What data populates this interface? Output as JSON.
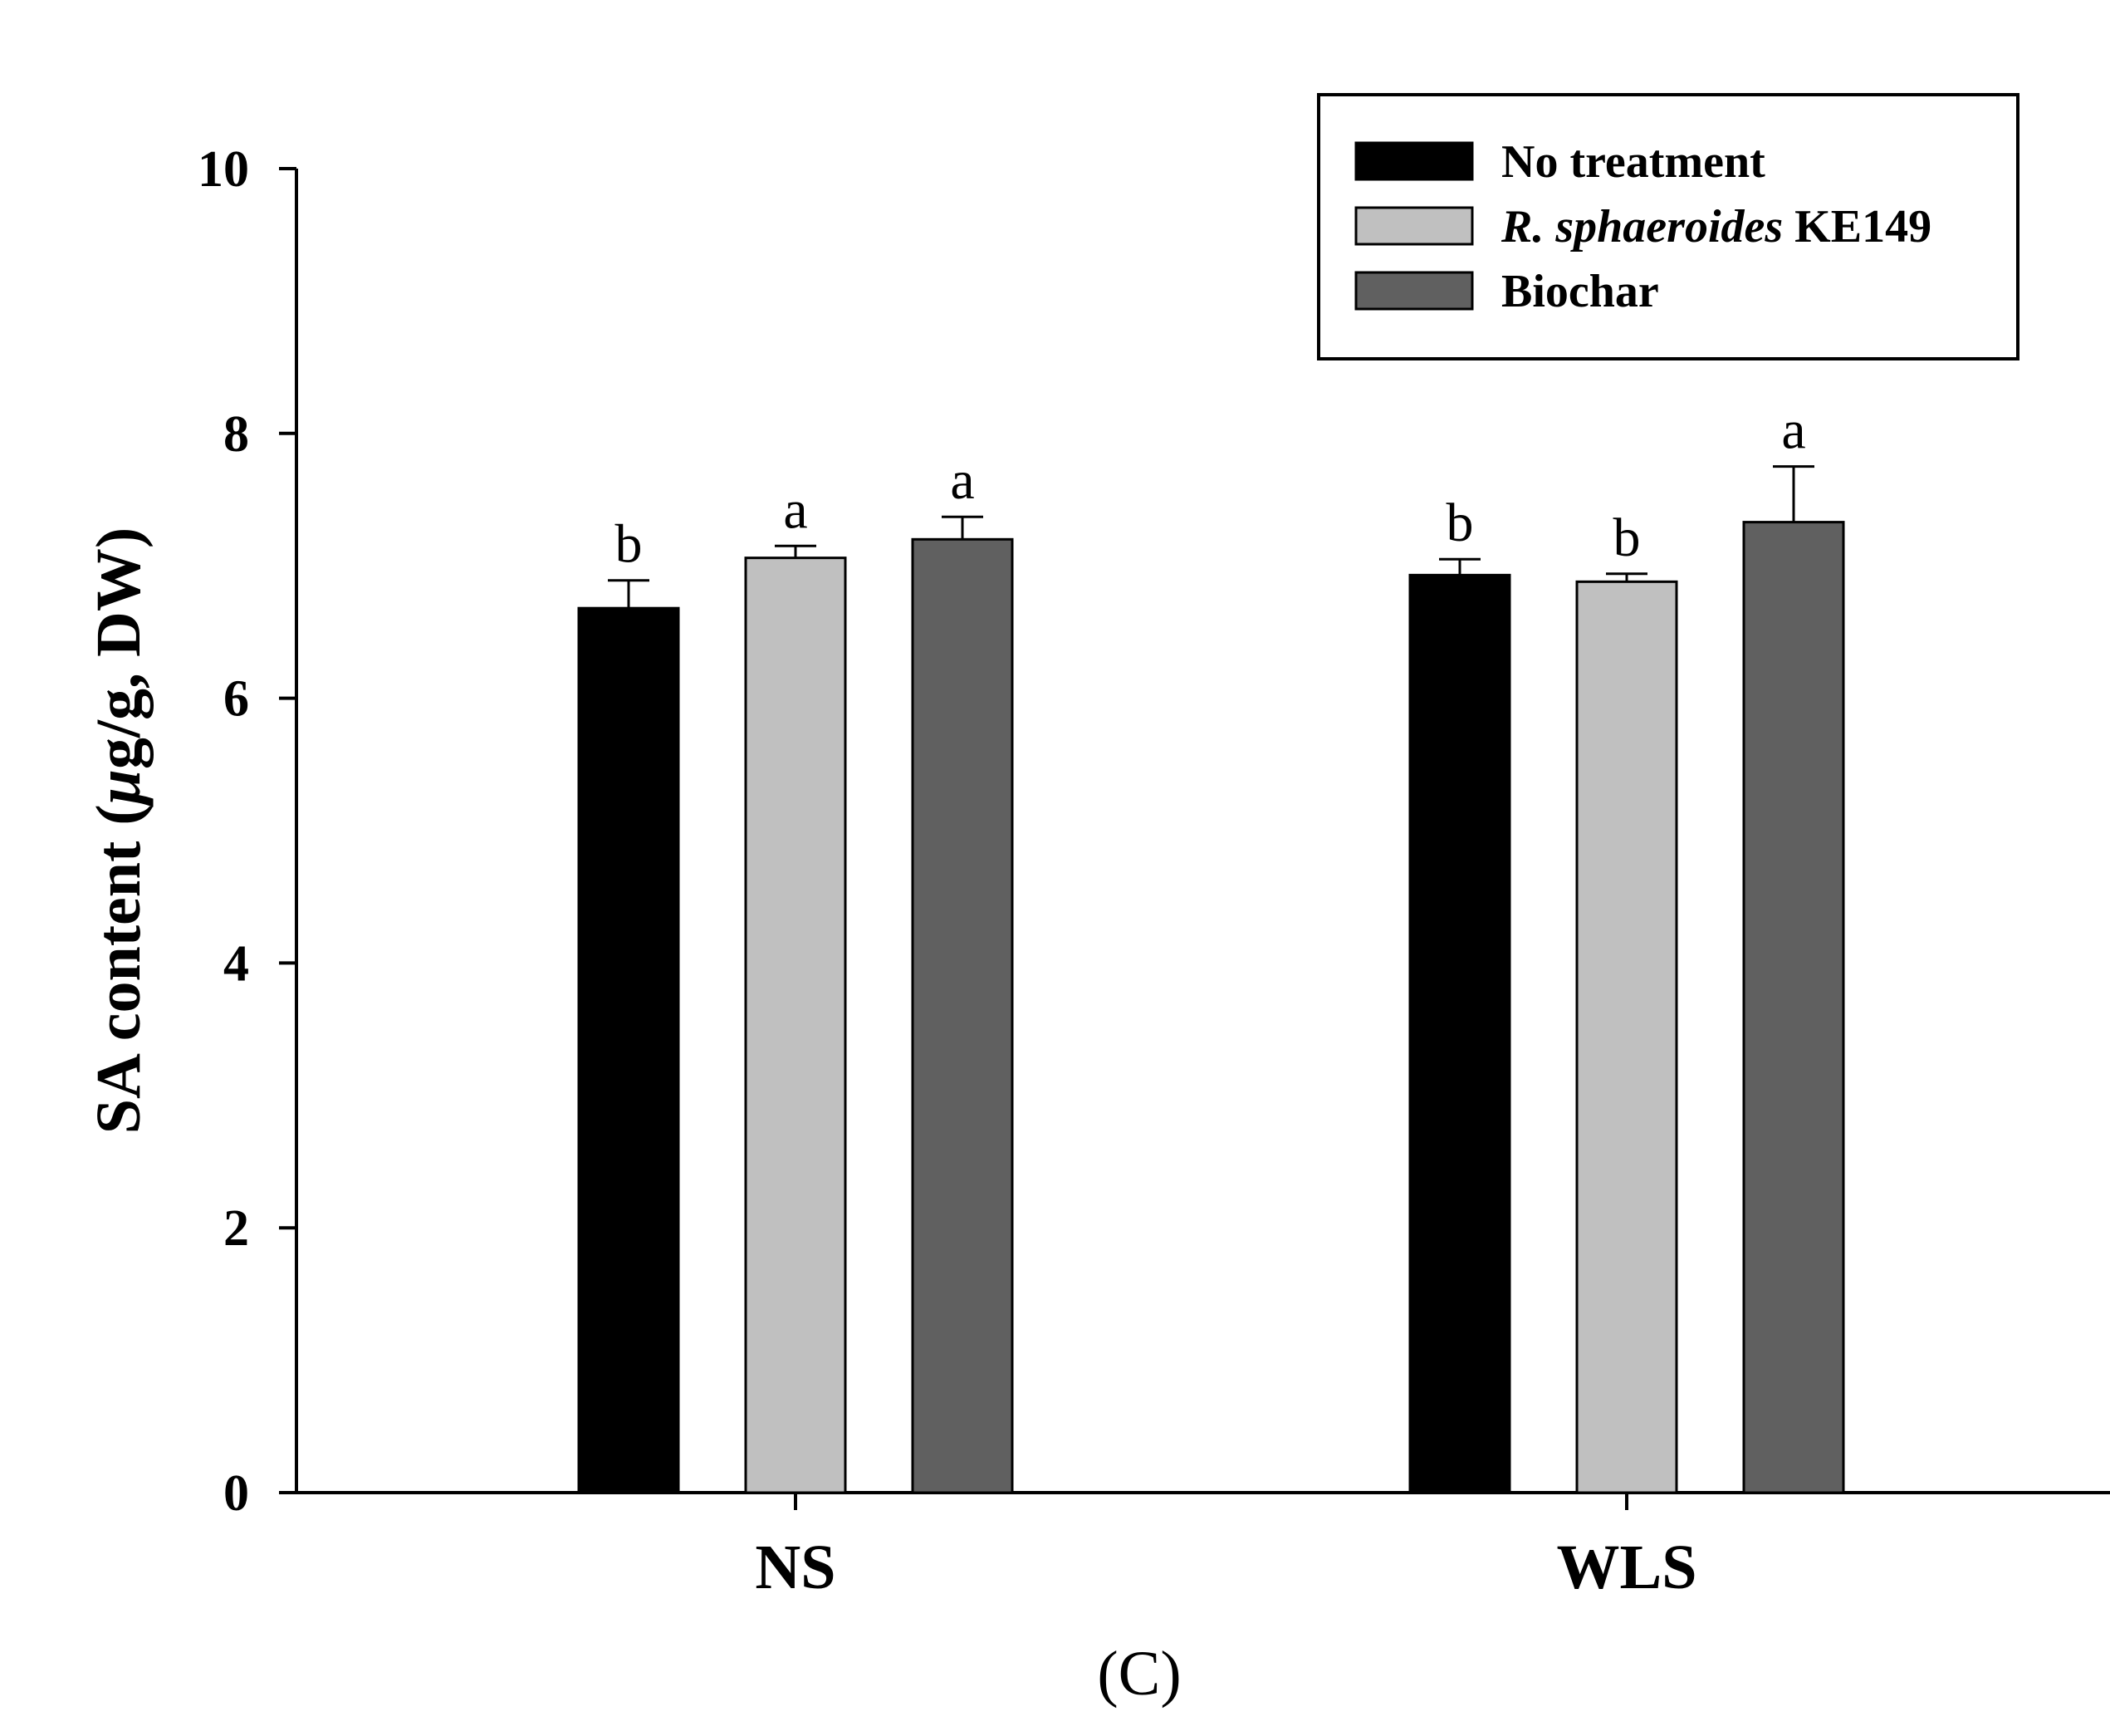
{
  "chart_data": {
    "type": "bar",
    "title": "",
    "xlabel": "",
    "ylabel_parts": [
      "SA content (",
      "μ",
      "g/g, DW)"
    ],
    "ylim": [
      0,
      10
    ],
    "yticks": [
      "0",
      "2",
      "4",
      "6",
      "8",
      "10"
    ],
    "categories": [
      "NS",
      "WLS"
    ],
    "series": [
      {
        "name": "No treatment",
        "name_parts": [
          {
            "text": "No treatment",
            "italic": false
          }
        ],
        "color": "#000000",
        "values": [
          6.68,
          6.93
        ],
        "errors": [
          0.21,
          0.12
        ],
        "labels": [
          "b",
          "b"
        ]
      },
      {
        "name": "R. sphaeroides KE149",
        "name_parts": [
          {
            "text": "R. sphaeroides",
            "italic": true
          },
          {
            "text": " KE149",
            "italic": false
          }
        ],
        "color": "#c0c0c0",
        "values": [
          7.06,
          6.88
        ],
        "errors": [
          0.09,
          0.06
        ],
        "labels": [
          "a",
          "b"
        ]
      },
      {
        "name": "Biochar",
        "name_parts": [
          {
            "text": "Biochar",
            "italic": false
          }
        ],
        "color": "#606060",
        "values": [
          7.2,
          7.33
        ],
        "errors": [
          0.17,
          0.42
        ],
        "labels": [
          "a",
          "a"
        ]
      }
    ],
    "legend_position": "top-right",
    "panel_label": "(C)"
  }
}
